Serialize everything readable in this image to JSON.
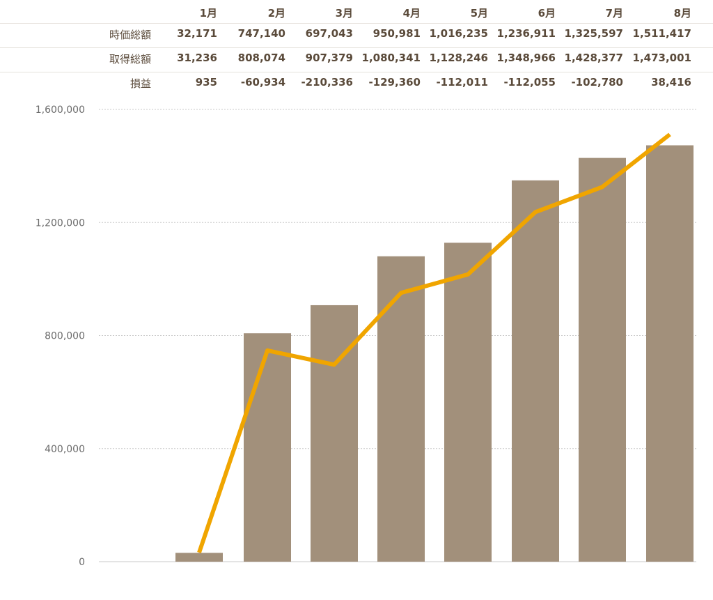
{
  "table": {
    "months": [
      "1月",
      "2月",
      "3月",
      "4月",
      "5月",
      "6月",
      "7月",
      "8月"
    ],
    "rows": [
      {
        "label": "時価総額",
        "values": [
          "32,171",
          "747,140",
          "697,043",
          "950,981",
          "1,016,235",
          "1,236,911",
          "1,325,597",
          "1,511,417"
        ]
      },
      {
        "label": "取得総額",
        "values": [
          "31,236",
          "808,074",
          "907,379",
          "1,080,341",
          "1,128,246",
          "1,348,966",
          "1,428,377",
          "1,473,001"
        ]
      },
      {
        "label": "損益",
        "values": [
          "935",
          "-60,934",
          "-210,336",
          "-129,360",
          "-112,011",
          "-112,055",
          "-102,780",
          "38,416"
        ]
      }
    ]
  },
  "chart_data": {
    "type": "bar+line",
    "categories": [
      "1月",
      "2月",
      "3月",
      "4月",
      "5月",
      "6月",
      "7月",
      "8月"
    ],
    "series": [
      {
        "name": "取得総額",
        "type": "bar",
        "color": "#a2907b",
        "values": [
          31236,
          808074,
          907379,
          1080341,
          1128246,
          1348966,
          1428377,
          1473001
        ]
      },
      {
        "name": "時価総額",
        "type": "line",
        "color": "#f0a500",
        "values": [
          32171,
          747140,
          697043,
          950981,
          1016235,
          1236911,
          1325597,
          1511417
        ]
      }
    ],
    "ylim": [
      0,
      1600000
    ],
    "yticks": [
      0,
      400000,
      800000,
      1200000,
      1600000
    ],
    "ytick_labels": [
      "0",
      "400,000",
      "800,000",
      "1,200,000",
      "1,600,000"
    ],
    "grid": true,
    "legend": "none"
  }
}
